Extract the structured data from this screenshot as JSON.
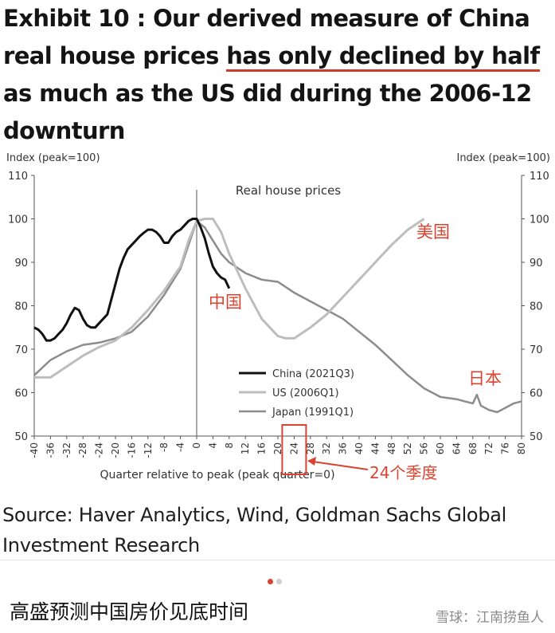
{
  "title": {
    "prefix": "Exhibit 10 : Our derived measure of China real house prices ",
    "highlight": "has only declined by half",
    "suffix": " as much as the US did during the 2006-12 downturn"
  },
  "source": "Source: Haver Analytics, Wind, Goldman Sachs Global Investment Research",
  "caption": "高盛预测中国房价见底时间",
  "watermark": "雪球：江南捞鱼人",
  "colors": {
    "china": "#111111",
    "us": "#bdbdbd",
    "japan": "#8c8c8c",
    "annotation": "#d9432f",
    "dot_active": "#d9432f",
    "dot_inactive": "#cfcfcf"
  },
  "chart_data": {
    "type": "line",
    "title": "Real house prices",
    "xlabel": "Quarter relative to peak (peak quarter=0)",
    "ylabel_left": "Index (peak=100)",
    "ylabel_right": "Index (peak=100)",
    "xlim": [
      -40,
      80
    ],
    "ylim": [
      50,
      110
    ],
    "x_ticks": [
      -40,
      -36,
      -32,
      -28,
      -24,
      -20,
      -16,
      -12,
      -8,
      -4,
      0,
      4,
      8,
      12,
      16,
      20,
      24,
      28,
      32,
      36,
      40,
      44,
      48,
      52,
      56,
      60,
      64,
      68,
      72,
      76,
      80
    ],
    "y_ticks": [
      50,
      60,
      70,
      80,
      90,
      100,
      110
    ],
    "series": [
      {
        "name": "China (2021Q3)",
        "x": [
          -40,
          -39,
          -38,
          -37,
          -36,
          -35,
          -34,
          -33,
          -32,
          -31,
          -30,
          -29,
          -28,
          -27,
          -26,
          -25,
          -24,
          -23,
          -22,
          -21,
          -20,
          -19,
          -18,
          -17,
          -16,
          -15,
          -14,
          -13,
          -12,
          -11,
          -10,
          -9,
          -8,
          -7,
          -6,
          -5,
          -4,
          -3,
          -2,
          -1,
          0,
          1,
          2,
          3,
          4,
          5,
          6,
          7,
          8
        ],
        "y": [
          75,
          74.5,
          73.5,
          72,
          72,
          72.5,
          73.5,
          74.5,
          76,
          78,
          79.5,
          79,
          77,
          75.5,
          75,
          75,
          76,
          77,
          78,
          81.5,
          85,
          88.5,
          91,
          93,
          94,
          95,
          96,
          96.8,
          97.5,
          97.5,
          97,
          96,
          94.5,
          94.5,
          96,
          97,
          97.5,
          98.5,
          99.5,
          100,
          100,
          98,
          95.5,
          92,
          89,
          87.5,
          86.5,
          86,
          84
        ]
      },
      {
        "name": "US (2006Q1)",
        "x": [
          -40,
          -36,
          -32,
          -28,
          -24,
          -20,
          -16,
          -12,
          -8,
          -4,
          -2,
          0,
          2,
          4,
          6,
          8,
          12,
          16,
          20,
          22,
          24,
          28,
          32,
          36,
          40,
          44,
          48,
          52,
          56
        ],
        "y": [
          63.5,
          63.5,
          66,
          68.5,
          70.5,
          72,
          75,
          79,
          83.5,
          89,
          95,
          99.5,
          100,
          100,
          97,
          92,
          84,
          77,
          73,
          72.5,
          72.5,
          75,
          78,
          82,
          86,
          90,
          94,
          97.5,
          100
        ]
      },
      {
        "name": "Japan (1991Q1)",
        "x": [
          -40,
          -36,
          -32,
          -28,
          -24,
          -20,
          -16,
          -12,
          -8,
          -4,
          -2,
          0,
          2,
          4,
          6,
          8,
          12,
          16,
          20,
          24,
          28,
          32,
          36,
          40,
          44,
          48,
          52,
          56,
          60,
          64,
          66,
          68,
          69,
          70,
          72,
          74,
          76,
          78,
          80
        ],
        "y": [
          64,
          67.5,
          69.5,
          71,
          71.5,
          72.5,
          74,
          77.5,
          82.5,
          88.5,
          94,
          99.5,
          98,
          95,
          92,
          90,
          87.5,
          86,
          85.5,
          83,
          81,
          79,
          77,
          74,
          71,
          67.5,
          64,
          61,
          59,
          58.5,
          58,
          57.5,
          59.5,
          57,
          56,
          55.5,
          56.5,
          57.5,
          58
        ]
      }
    ],
    "legend": {
      "position": "lower-middle",
      "entries": [
        "China (2021Q3)",
        "US (2006Q1)",
        "Japan (1991Q1)"
      ]
    },
    "annotations": [
      {
        "text": "美国",
        "series": "US (2006Q1)"
      },
      {
        "text": "中国",
        "series": "China (2021Q3)"
      },
      {
        "text": "日本",
        "series": "Japan (1991Q1)"
      },
      {
        "text": "24个季度",
        "x": 24
      }
    ],
    "peak_line_x": 0,
    "grid": false
  }
}
